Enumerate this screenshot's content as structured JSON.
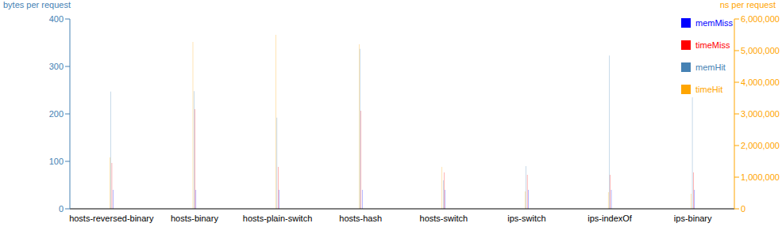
{
  "chart_data": {
    "type": "bar",
    "categories": [
      "hosts-reversed-binary",
      "hosts-binary",
      "hosts-plain-switch",
      "hosts-hash",
      "hosts-switch",
      "ips-switch",
      "ips-indexOf",
      "ips-binary"
    ],
    "y_label": "bytes per request",
    "y2_label": "ns per request",
    "ylim": [
      0,
      400
    ],
    "yticks": [
      0,
      100,
      200,
      300,
      400
    ],
    "y2lim": [
      0,
      6000000
    ],
    "y2ticks": [
      {
        "value": 0,
        "label": "0"
      },
      {
        "value": 1000000,
        "label": "1,000,000"
      },
      {
        "value": 2000000,
        "label": "2,000,000"
      },
      {
        "value": 3000000,
        "label": "3,000,000"
      },
      {
        "value": 4000000,
        "label": "4,000,000"
      },
      {
        "value": 5000000,
        "label": "5,000,000"
      },
      {
        "value": 6000000,
        "label": "6,000,000"
      }
    ],
    "grid": false,
    "legend": "top-right",
    "series": [
      {
        "name": "timeHit",
        "color": "#ffa500",
        "axis": "y2",
        "values": [
          1625000,
          5275000,
          5500000,
          5200000,
          1325000,
          550000,
          525000,
          475000
        ]
      },
      {
        "name": "memHit",
        "color": "#4682b4",
        "values": [
          247,
          248,
          192,
          337,
          60,
          90,
          323,
          235
        ]
      },
      {
        "name": "timeMiss",
        "color": "#ff0000",
        "axis": "y2",
        "values": [
          1450000,
          3150000,
          1325000,
          3100000,
          1150000,
          1075000,
          1075000,
          1150000
        ]
      },
      {
        "name": "memMiss",
        "color": "#0000ff",
        "values": [
          40,
          40,
          40,
          40,
          40,
          40,
          40,
          40
        ]
      }
    ]
  }
}
